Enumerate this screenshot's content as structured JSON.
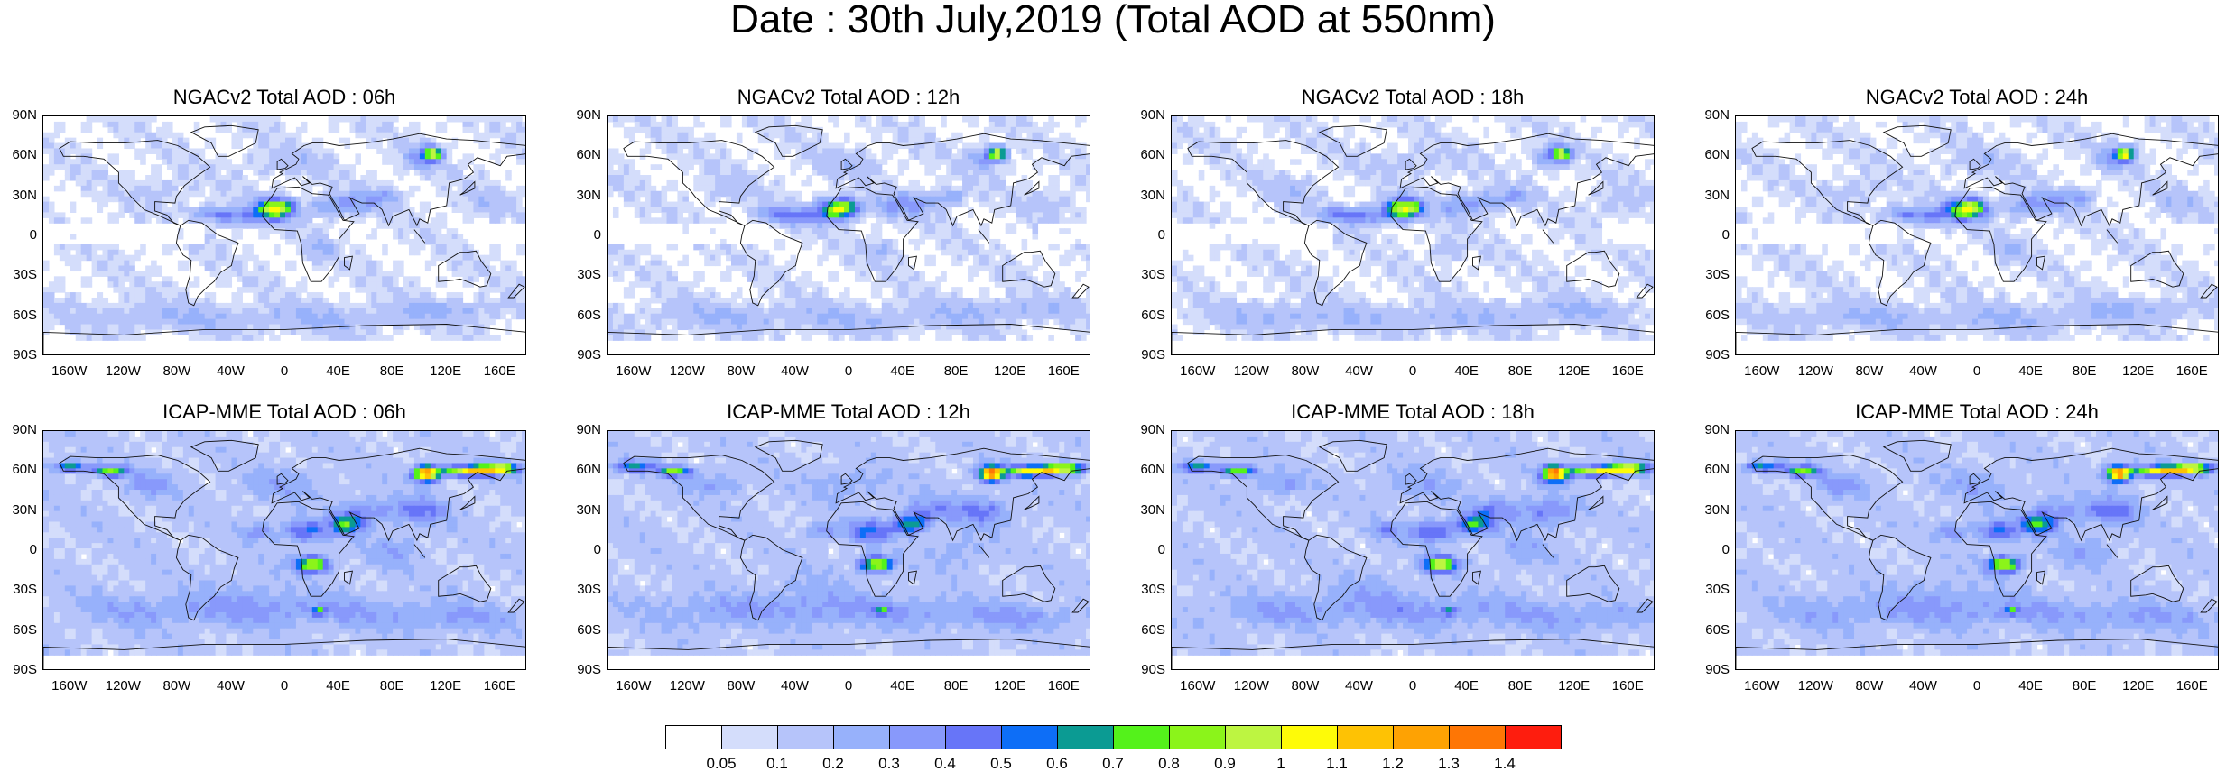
{
  "title": "Date : 30th July,2019 (Total AOD at 550nm)",
  "chart_data": {
    "type": "heatmap",
    "colorbar": {
      "levels": [
        "0.05",
        "0.1",
        "0.2",
        "0.3",
        "0.4",
        "0.5",
        "0.6",
        "0.7",
        "0.8",
        "0.9",
        "1",
        "1.1",
        "1.2",
        "1.3",
        "1.4"
      ],
      "colors": [
        "#ffffff",
        "#d4ddfb",
        "#b6c4fa",
        "#97b1fb",
        "#8899fb",
        "#6775f8",
        "#0d6ef7",
        "#0b9b93",
        "#54f21b",
        "#8bf41a",
        "#bdf541",
        "#fefb08",
        "#fec204",
        "#fea203",
        "#fe7605",
        "#fe1d0e"
      ]
    },
    "lat_ticks": [
      "90N",
      "60N",
      "30N",
      "0",
      "30S",
      "60S",
      "90S"
    ],
    "lon_ticks": [
      "160W",
      "120W",
      "80W",
      "40W",
      "0",
      "40E",
      "80E",
      "120E",
      "160E"
    ],
    "panels": [
      {
        "title": "NGACv2 Total AOD : 06h",
        "model": "NGACv2"
      },
      {
        "title": "NGACv2 Total AOD : 12h",
        "model": "NGACv2"
      },
      {
        "title": "NGACv2 Total AOD : 18h",
        "model": "NGACv2"
      },
      {
        "title": "NGACv2 Total AOD : 24h",
        "model": "NGACv2"
      },
      {
        "title": "ICAP-MME Total AOD : 06h",
        "model": "ICAP-MME"
      },
      {
        "title": "ICAP-MME Total AOD : 12h",
        "model": "ICAP-MME"
      },
      {
        "title": "ICAP-MME Total AOD : 18h",
        "model": "ICAP-MME"
      },
      {
        "title": "ICAP-MME Total AOD : 24h",
        "model": "ICAP-MME"
      }
    ]
  }
}
